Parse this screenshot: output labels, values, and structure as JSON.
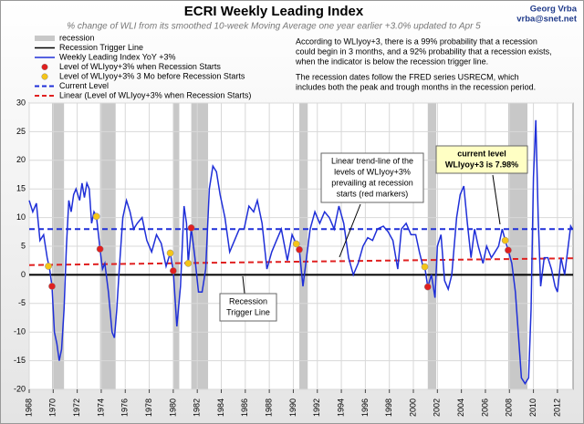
{
  "chart_data": {
    "type": "line",
    "title": "ECRI Weekly Leading Index",
    "subtitle": "% change of WLI from its smoothed 10-week Moving Average one year earlier +3.0% updated to Apr 5",
    "author": [
      "Georg Vrba",
      "vrba@snet.net"
    ],
    "xlim": [
      1968,
      2013.3
    ],
    "xticks": [
      1968,
      1970,
      1972,
      1974,
      1976,
      1978,
      1980,
      1982,
      1984,
      1986,
      1988,
      1990,
      1992,
      1994,
      1996,
      1998,
      2000,
      2002,
      2004,
      2006,
      2008,
      2010,
      2012
    ],
    "ylim": [
      -20,
      30
    ],
    "yticks": [
      30,
      25,
      20,
      15,
      10,
      5,
      0,
      -5,
      -10,
      -15,
      -20
    ],
    "grid": true,
    "series": [
      {
        "name": "recession",
        "color": "#c8c8c8",
        "style": "band",
        "periods": [
          [
            1969.9,
            1970.9
          ],
          [
            1973.9,
            1975.2
          ],
          [
            1980.0,
            1980.5
          ],
          [
            1981.5,
            1982.9
          ],
          [
            1990.5,
            1991.2
          ],
          [
            2001.2,
            2001.9
          ],
          [
            2007.9,
            2009.5
          ]
        ]
      },
      {
        "name": "Recession Trigger Line",
        "color": "#000000",
        "style": "line",
        "x": [
          1968,
          2013.3
        ],
        "values": [
          0,
          0
        ]
      },
      {
        "name": "Weekly Leading Index YoY +3%",
        "color": "#1f2fd8",
        "style": "line",
        "x": [
          1968.0,
          1968.3,
          1968.6,
          1968.9,
          1969.2,
          1969.5,
          1969.7,
          1969.9,
          1970.1,
          1970.3,
          1970.5,
          1970.7,
          1970.9,
          1971.1,
          1971.3,
          1971.5,
          1971.7,
          1971.9,
          1972.2,
          1972.4,
          1972.6,
          1972.8,
          1973.0,
          1973.2,
          1973.4,
          1973.6,
          1973.9,
          1974.1,
          1974.3,
          1974.6,
          1974.9,
          1975.1,
          1975.3,
          1975.5,
          1975.8,
          1976.1,
          1976.4,
          1976.7,
          1977.0,
          1977.4,
          1977.8,
          1978.2,
          1978.6,
          1979.0,
          1979.4,
          1979.75,
          1980.0,
          1980.3,
          1980.6,
          1980.9,
          1981.1,
          1981.25,
          1981.5,
          1981.8,
          1982.1,
          1982.4,
          1982.7,
          1983.0,
          1983.3,
          1983.6,
          1983.9,
          1984.3,
          1984.7,
          1985.1,
          1985.5,
          1985.9,
          1986.3,
          1986.7,
          1987.0,
          1987.4,
          1987.8,
          1988.2,
          1988.6,
          1989.0,
          1989.5,
          1989.9,
          1990.25,
          1990.5,
          1990.8,
          1991.1,
          1991.4,
          1991.8,
          1992.2,
          1992.6,
          1993.0,
          1993.4,
          1993.8,
          1994.2,
          1994.6,
          1995.0,
          1995.4,
          1995.8,
          1996.2,
          1996.6,
          1997.0,
          1997.5,
          1997.9,
          1998.3,
          1998.7,
          1999.0,
          1999.4,
          1999.8,
          2000.2,
          2000.5,
          2000.8,
          2000.95,
          2001.2,
          2001.5,
          2001.8,
          2002.0,
          2002.3,
          2002.6,
          2002.9,
          2003.2,
          2003.6,
          2003.9,
          2004.2,
          2004.5,
          2004.8,
          2005.1,
          2005.4,
          2005.8,
          2006.1,
          2006.5,
          2006.8,
          2007.1,
          2007.4,
          2007.65,
          2007.9,
          2008.2,
          2008.5,
          2008.8,
          2009.0,
          2009.3,
          2009.6,
          2009.8,
          2010.0,
          2010.2,
          2010.4,
          2010.6,
          2010.9,
          2011.2,
          2011.5,
          2011.8,
          2012.0,
          2012.3,
          2012.6,
          2012.9,
          2013.1,
          2013.25
        ],
        "values": [
          13,
          11,
          12.5,
          6,
          7,
          3,
          1,
          -2,
          -10,
          -12,
          -15,
          -13,
          -6,
          5,
          13,
          11,
          14,
          15,
          13,
          16,
          13.5,
          16,
          15,
          9,
          11,
          10.2,
          4.5,
          1,
          2,
          -3,
          -10,
          -11,
          -6,
          1,
          10,
          13,
          11,
          8,
          9,
          10,
          6,
          4,
          7,
          5.5,
          1.5,
          3.8,
          0.7,
          -9,
          -2,
          12,
          9,
          2,
          8.2,
          3,
          -3,
          -3,
          1,
          15,
          19,
          18,
          14,
          10,
          4,
          6,
          8,
          8,
          12,
          11,
          13,
          9,
          1,
          4,
          6,
          8,
          2.5,
          7,
          5.4,
          4.4,
          -2,
          3,
          8,
          11,
          9,
          11,
          10,
          8,
          12,
          9,
          3,
          0,
          2,
          5,
          6.5,
          6,
          8,
          8.5,
          7.5,
          6,
          1,
          8,
          9,
          7,
          7,
          4,
          1.5,
          1.4,
          -2.1,
          0,
          -4,
          5,
          7,
          -1,
          -2.5,
          0,
          10,
          14,
          15.5,
          9,
          3,
          8,
          5,
          2,
          5,
          3,
          4,
          5,
          8,
          6,
          4.3,
          2,
          -3,
          -12,
          -18,
          -19,
          -18,
          -6,
          17,
          27,
          10,
          -2,
          3,
          3,
          1,
          -2,
          -3,
          3,
          0,
          5,
          8.5,
          7.98
        ]
      },
      {
        "name": "Level of WLIyoy+3% when Recession Starts",
        "color": "#e02020",
        "style": "marker",
        "x": [
          1969.9,
          1973.9,
          1980.0,
          1981.5,
          1990.5,
          2001.2,
          2007.9
        ],
        "values": [
          -2,
          4.5,
          0.7,
          8.2,
          4.4,
          -2.1,
          4.3
        ]
      },
      {
        "name": "Level of WLIyoy+3% 3 Mo before Recession Starts",
        "color": "#f5c518",
        "style": "marker",
        "x": [
          1969.6,
          1973.6,
          1979.75,
          1981.25,
          1990.25,
          2000.95,
          2007.65
        ],
        "values": [
          1.5,
          10.2,
          3.8,
          2.0,
          5.4,
          1.4,
          6.0
        ]
      },
      {
        "name": "Current Level",
        "color": "#1f2fd8",
        "style": "dashed",
        "x": [
          1968,
          2013.3
        ],
        "values": [
          7.98,
          7.98
        ]
      },
      {
        "name": "Linear (Level of WLIyoy+3% when Recession Starts)",
        "color": "#e02020",
        "style": "dashed",
        "x": [
          1968,
          2013.3
        ],
        "values": [
          1.7,
          2.9
        ]
      }
    ],
    "info": [
      [
        "According to WLIyoy+3, there is a 99% probability that a recession",
        "could begin in 3 months, and a 92% probability that a recession exists,",
        "when the indicator is below the recession trigger line."
      ],
      [
        "The recession dates follow the FRED series USRECM, which",
        "includes both the peak and trough months in the recession period."
      ]
    ],
    "annotations": [
      [
        "Linear trend-line of the",
        "levels of WLIyoy+3%",
        "prevailing at recession",
        "starts (red markers)"
      ],
      [
        "current level",
        "WLIyoy+3 is 7.98%"
      ],
      [
        "Recession",
        "Trigger Line"
      ]
    ]
  }
}
